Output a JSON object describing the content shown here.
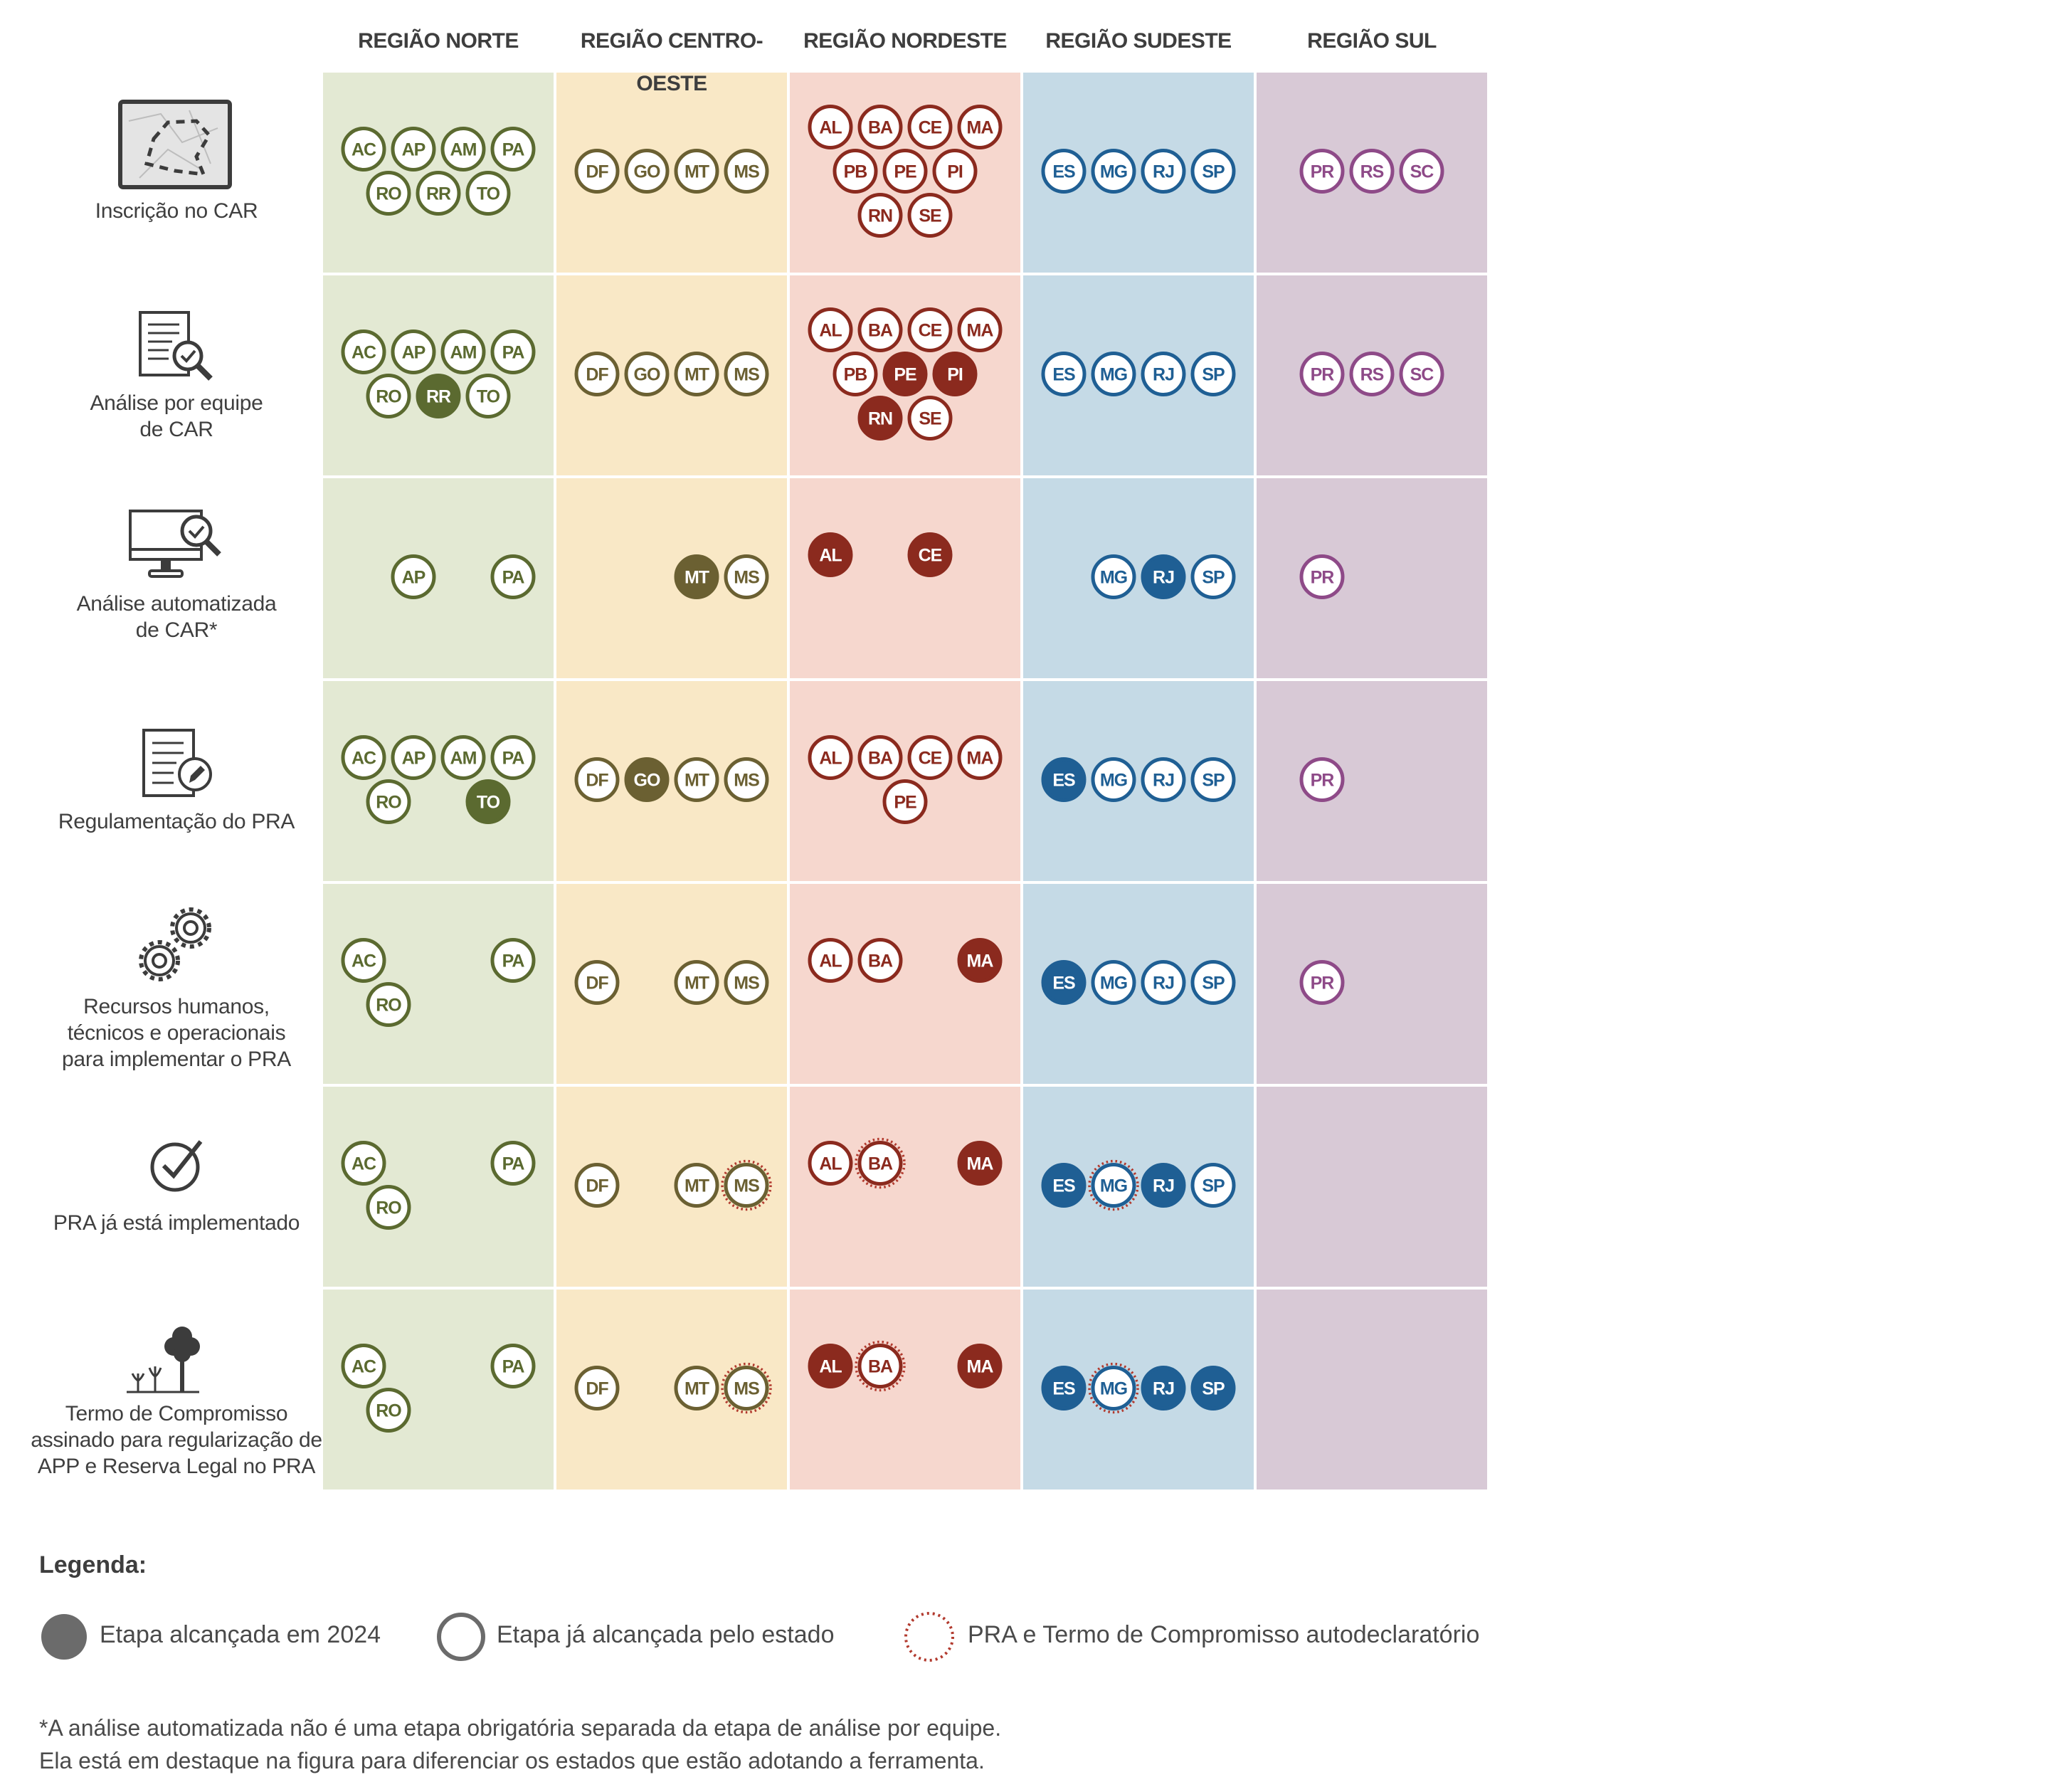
{
  "regions": [
    {
      "id": "norte",
      "title": "REGIÃO NORTE",
      "fill": "#e3e9d3",
      "color": "#5b6a30"
    },
    {
      "id": "centro_oeste",
      "title": "REGIÃO CENTRO-OESTE",
      "fill": "#f9e8c6",
      "color": "#6b6032"
    },
    {
      "id": "nordeste",
      "title": "REGIÃO NORDESTE",
      "fill": "#f6d7ce",
      "color": "#8b2a1e"
    },
    {
      "id": "sudeste",
      "title": "REGIÃO SUDESTE",
      "fill": "#c5dae6",
      "color": "#1f5f94"
    },
    {
      "id": "sul",
      "title": "REGIÃO SUL",
      "fill": "#d8c9d6",
      "color": "#8e4a88"
    }
  ],
  "steps": [
    {
      "label": "Inscrição no CAR",
      "icon": "map-icon",
      "cells": {
        "norte": [
          [
            "AC",
            "AP",
            "AM",
            "PA"
          ],
          [
            "RO",
            "RR",
            "TO"
          ]
        ],
        "centro_oeste": [
          [
            "DF",
            "GO",
            "MT",
            "MS"
          ]
        ],
        "nordeste": [
          [
            "AL",
            "BA",
            "CE",
            "MA"
          ],
          [
            "PB",
            "PE",
            "PI"
          ],
          [
            "RN",
            "SE"
          ]
        ],
        "sudeste": [
          [
            "ES",
            "MG",
            "RJ",
            "SP"
          ]
        ],
        "sul": [
          [
            "PR",
            "RS",
            "SC"
          ]
        ]
      }
    },
    {
      "label": "Análise por equipe\nde CAR",
      "icon": "document-check-icon",
      "cells": {
        "norte": [
          [
            "AC",
            "AP",
            "AM",
            "PA"
          ],
          [
            "RO",
            "RR*",
            "TO"
          ]
        ],
        "centro_oeste": [
          [
            "DF",
            "GO",
            "MT",
            "MS"
          ]
        ],
        "nordeste": [
          [
            "AL",
            "BA",
            "CE",
            "MA"
          ],
          [
            "PB",
            "PE*",
            "PI*"
          ],
          [
            "RN*",
            "SE"
          ]
        ],
        "sudeste": [
          [
            "ES",
            "MG",
            "RJ",
            "SP"
          ]
        ],
        "sul": [
          [
            "PR",
            "RS",
            "SC"
          ]
        ]
      }
    },
    {
      "label": "Análise automatizada\nde CAR*",
      "icon": "monitor-check-icon",
      "cells": {
        "norte": [
          [
            "",
            "AP",
            "",
            "PA"
          ]
        ],
        "centro_oeste": [
          [
            "",
            "",
            "MT*",
            "MS"
          ]
        ],
        "nordeste": [
          [
            "AL*",
            "",
            "CE*",
            ""
          ],
          [
            "",
            "",
            ""
          ]
        ],
        "sudeste": [
          [
            "",
            "MG",
            "RJ*",
            "SP"
          ]
        ],
        "sul": [
          [
            "PR",
            "",
            ""
          ]
        ]
      }
    },
    {
      "label": "Regulamentação do PRA",
      "icon": "document-pen-icon",
      "cells": {
        "norte": [
          [
            "AC",
            "AP",
            "AM",
            "PA"
          ],
          [
            "RO",
            "",
            "TO*"
          ]
        ],
        "centro_oeste": [
          [
            "DF",
            "GO*",
            "MT",
            "MS"
          ]
        ],
        "nordeste": [
          [
            "AL",
            "BA",
            "CE",
            "MA"
          ],
          [
            "",
            "PE",
            ""
          ]
        ],
        "sudeste": [
          [
            "ES*",
            "MG",
            "RJ",
            "SP"
          ]
        ],
        "sul": [
          [
            "PR",
            "",
            ""
          ]
        ]
      }
    },
    {
      "label": "Recursos humanos,\ntécnicos e operacionais\npara implementar o PRA",
      "icon": "gears-icon",
      "cells": {
        "norte": [
          [
            "AC",
            "",
            "",
            "PA"
          ],
          [
            "RO",
            "",
            ""
          ]
        ],
        "centro_oeste": [
          [
            "DF",
            "",
            "MT",
            "MS"
          ]
        ],
        "nordeste": [
          [
            "AL",
            "BA",
            "",
            "MA*"
          ],
          [
            "",
            "",
            ""
          ]
        ],
        "sudeste": [
          [
            "ES*",
            "MG",
            "RJ",
            "SP"
          ]
        ],
        "sul": [
          [
            "PR",
            "",
            ""
          ]
        ]
      }
    },
    {
      "label": "PRA já está implementado",
      "icon": "check-circle-icon",
      "cells": {
        "norte": [
          [
            "AC",
            "",
            "",
            "PA"
          ],
          [
            "RO",
            "",
            ""
          ]
        ],
        "centro_oeste": [
          [
            "DF",
            "",
            "MT",
            "MS~"
          ]
        ],
        "nordeste": [
          [
            "AL",
            "BA~",
            "",
            "MA*"
          ],
          [
            "",
            "",
            ""
          ]
        ],
        "sudeste": [
          [
            "ES*",
            "MG~",
            "RJ*",
            "SP"
          ]
        ],
        "sul": []
      }
    },
    {
      "label": "Termo de Compromisso\nassinado para regularização de\nAPP e Reserva Legal no PRA",
      "icon": "tree-icon",
      "cells": {
        "norte": [
          [
            "AC",
            "",
            "",
            "PA"
          ],
          [
            "RO",
            "",
            ""
          ]
        ],
        "centro_oeste": [
          [
            "DF",
            "",
            "MT",
            "MS~"
          ]
        ],
        "nordeste": [
          [
            "AL*",
            "BA~",
            "",
            "MA*"
          ],
          [
            "",
            "",
            ""
          ]
        ],
        "sudeste": [
          [
            "ES*",
            "MG~",
            "RJ*",
            "SP*"
          ]
        ],
        "sul": []
      }
    }
  ],
  "legend": {
    "title": "Legenda:",
    "reached_2024": "Etapa alcançada em 2024",
    "already_reached": "Etapa já alcançada pelo estado",
    "self_declared": "PRA e Termo de Compromisso autodeclaratório",
    "marker_color": "#6b6b6b",
    "dotted_color": "#b23a2e"
  },
  "footnote": {
    "line1": "*A análise automatizada não é uma etapa obrigatória separada da etapa de análise por equipe.",
    "line2": "Ela está em destaque na figura para diferenciar os estados que estão adotando a ferramenta."
  }
}
